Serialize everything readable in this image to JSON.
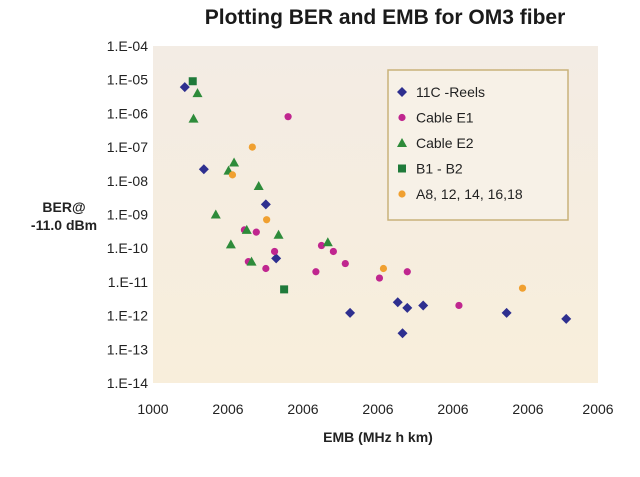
{
  "chart_data": {
    "type": "scatter",
    "title": "Plotting BER and EMB for OM3 fiber",
    "xlabel": "EMB (MHz h km)",
    "ylabel_lines": [
      "BER@",
      "-11.0 dBm"
    ],
    "x_tick_labels": [
      "1000",
      "2006",
      "2006",
      "2006",
      "2006",
      "2006",
      "2006"
    ],
    "y_tick_labels": [
      "1.E-04",
      "1.E-05",
      "1.E-06",
      "1.E-07",
      "1.E-08",
      "1.E-09",
      "1.E-10",
      "1.E-11",
      "1.E-12",
      "1.E-13",
      "1.E-14"
    ],
    "x_scale": "linear",
    "y_scale": "log",
    "xlim": [
      1000,
      6600
    ],
    "ylim_exponents": [
      -14,
      -4
    ],
    "legend_position": "top-right",
    "grid": false,
    "colors": {
      "bg_top": "#f3ece4",
      "bg_bottom": "#f8eedb",
      "legend_border": "#c9b27a",
      "legend_bg": "#f7f1e7"
    },
    "series": [
      {
        "name": "11C -Reels",
        "marker": "diamond",
        "color": "#2e2f8f",
        "points": [
          {
            "x": 1400,
            "y": 6e-06
          },
          {
            "x": 1640,
            "y": 2.2e-08
          },
          {
            "x": 2420,
            "y": 2e-09
          },
          {
            "x": 2550,
            "y": 5e-11
          },
          {
            "x": 3480,
            "y": 1.2e-12
          },
          {
            "x": 4080,
            "y": 2.5e-12
          },
          {
            "x": 4200,
            "y": 1.7e-12
          },
          {
            "x": 4140,
            "y": 3e-13
          },
          {
            "x": 4400,
            "y": 2e-12
          },
          {
            "x": 5450,
            "y": 1.2e-12
          },
          {
            "x": 6200,
            "y": 8e-13
          }
        ]
      },
      {
        "name": "Cable E1",
        "marker": "circle",
        "color": "#c0268f",
        "points": [
          {
            "x": 2150,
            "y": 3.5e-10
          },
          {
            "x": 2200,
            "y": 4e-11
          },
          {
            "x": 2300,
            "y": 3e-10
          },
          {
            "x": 2420,
            "y": 2.5e-11
          },
          {
            "x": 2530,
            "y": 8e-11
          },
          {
            "x": 2700,
            "y": 8e-07
          },
          {
            "x": 3050,
            "y": 2e-11
          },
          {
            "x": 3120,
            "y": 1.2e-10
          },
          {
            "x": 3270,
            "y": 8e-11
          },
          {
            "x": 3420,
            "y": 3.5e-11
          },
          {
            "x": 3850,
            "y": 1.3e-11
          },
          {
            "x": 4200,
            "y": 2e-11
          },
          {
            "x": 4850,
            "y": 2e-12
          }
        ]
      },
      {
        "name": "Cable E2",
        "marker": "triangle",
        "color": "#2e8b3a",
        "points": [
          {
            "x": 1510,
            "y": 7e-07
          },
          {
            "x": 1560,
            "y": 4e-06
          },
          {
            "x": 1790,
            "y": 1e-09
          },
          {
            "x": 1950,
            "y": 2e-08
          },
          {
            "x": 1980,
            "y": 1.3e-10
          },
          {
            "x": 2020,
            "y": 3.5e-08
          },
          {
            "x": 2180,
            "y": 3.5e-10
          },
          {
            "x": 2240,
            "y": 4e-11
          },
          {
            "x": 2330,
            "y": 7e-09
          },
          {
            "x": 2580,
            "y": 2.5e-10
          },
          {
            "x": 3200,
            "y": 1.5e-10
          }
        ]
      },
      {
        "name": "B1 - B2",
        "marker": "square",
        "color": "#1f7a3a",
        "points": [
          {
            "x": 1500,
            "y": 9e-06
          },
          {
            "x": 2650,
            "y": 6e-12
          }
        ]
      },
      {
        "name": "A8, 12, 14, 16,18",
        "marker": "circle",
        "color": "#f0a030",
        "points": [
          {
            "x": 2000,
            "y": 1.5e-08
          },
          {
            "x": 2250,
            "y": 1e-07
          },
          {
            "x": 2430,
            "y": 7e-10
          },
          {
            "x": 3900,
            "y": 2.5e-11
          },
          {
            "x": 5650,
            "y": 6.5e-12
          }
        ]
      }
    ]
  }
}
